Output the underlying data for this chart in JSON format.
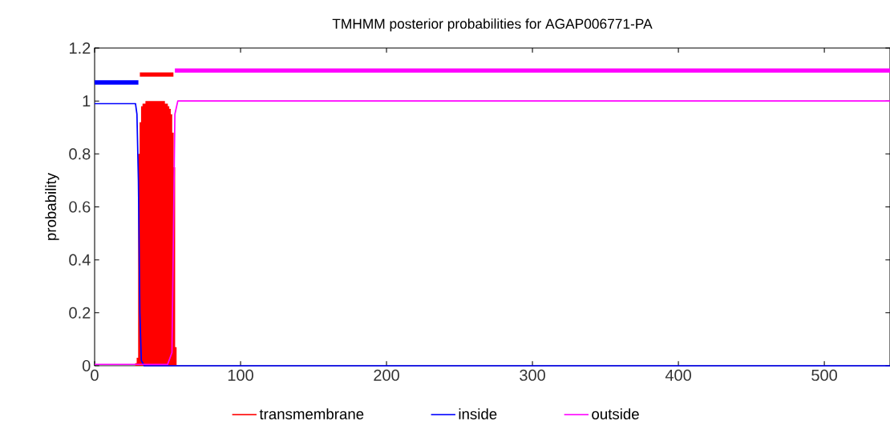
{
  "chart_data": {
    "type": "line",
    "title": "TMHMM posterior probabilities for AGAP006771-PA",
    "ylabel": "probability",
    "xlim": [
      0,
      545
    ],
    "ylim": [
      0,
      1.2
    ],
    "xticks": [
      0,
      100,
      200,
      300,
      400,
      500
    ],
    "yticks": [
      0,
      0.2,
      0.4,
      0.6,
      0.8,
      1,
      1.2
    ],
    "legend": "bottom",
    "grid": false,
    "series": [
      {
        "name": "transmembrane",
        "color": "#ff0000",
        "type": "bar",
        "x": [
          29,
          30,
          31,
          32,
          33,
          34,
          35,
          36,
          37,
          38,
          39,
          40,
          41,
          42,
          43,
          44,
          45,
          46,
          47,
          48,
          49,
          50,
          51,
          52,
          53,
          54,
          55
        ],
        "values": [
          0.01,
          0.03,
          0.8,
          0.92,
          0.98,
          0.99,
          0.99,
          1.0,
          1.0,
          1.0,
          1.0,
          1.0,
          1.0,
          1.0,
          1.0,
          1.0,
          1.0,
          1.0,
          1.0,
          0.99,
          0.99,
          0.98,
          0.97,
          0.95,
          0.88,
          0.75,
          0.07
        ]
      },
      {
        "name": "inside",
        "color": "#0000ff",
        "x": [
          0,
          28,
          29,
          30,
          31,
          32,
          34,
          545
        ],
        "values": [
          0.99,
          0.99,
          0.95,
          0.7,
          0.2,
          0.02,
          0.0,
          0.0
        ]
      },
      {
        "name": "outside",
        "color": "#ff00ff",
        "x": [
          0,
          50,
          53,
          54,
          55,
          57,
          545
        ],
        "values": [
          0.005,
          0.005,
          0.05,
          0.5,
          0.95,
          1.0,
          1.0
        ]
      },
      {
        "color": "#0000ff",
        "x": [
          0,
          30
        ],
        "values": [
          1.07,
          1.07
        ]
      },
      {
        "color": "#ff0000",
        "x": [
          31,
          54
        ],
        "values": [
          1.1,
          1.1
        ]
      },
      {
        "color": "#ff00ff",
        "x": [
          55,
          545
        ],
        "values": [
          1.115,
          1.115
        ]
      }
    ]
  }
}
